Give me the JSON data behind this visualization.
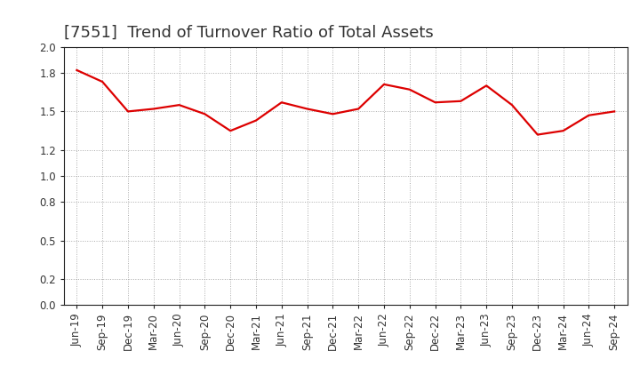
{
  "title": "[7551]  Trend of Turnover Ratio of Total Assets",
  "x_labels": [
    "Jun-19",
    "Sep-19",
    "Dec-19",
    "Mar-20",
    "Jun-20",
    "Sep-20",
    "Dec-20",
    "Mar-21",
    "Jun-21",
    "Sep-21",
    "Dec-21",
    "Mar-22",
    "Jun-22",
    "Sep-22",
    "Dec-22",
    "Mar-23",
    "Jun-23",
    "Sep-23",
    "Dec-23",
    "Mar-24",
    "Jun-24",
    "Sep-24"
  ],
  "values": [
    1.82,
    1.73,
    1.5,
    1.52,
    1.55,
    1.48,
    1.35,
    1.43,
    1.57,
    1.52,
    1.48,
    1.52,
    1.71,
    1.67,
    1.57,
    1.58,
    1.7,
    1.55,
    1.32,
    1.35,
    1.47,
    1.5
  ],
  "line_color": "#dd0000",
  "line_width": 1.6,
  "ylim": [
    0.0,
    2.0
  ],
  "yticks": [
    0.0,
    0.2,
    0.5,
    0.8,
    1.0,
    1.2,
    1.5,
    1.8,
    2.0
  ],
  "background_color": "#ffffff",
  "grid_color": "#aaaaaa",
  "title_fontsize": 13,
  "tick_fontsize": 8.5,
  "title_color": "#333333"
}
